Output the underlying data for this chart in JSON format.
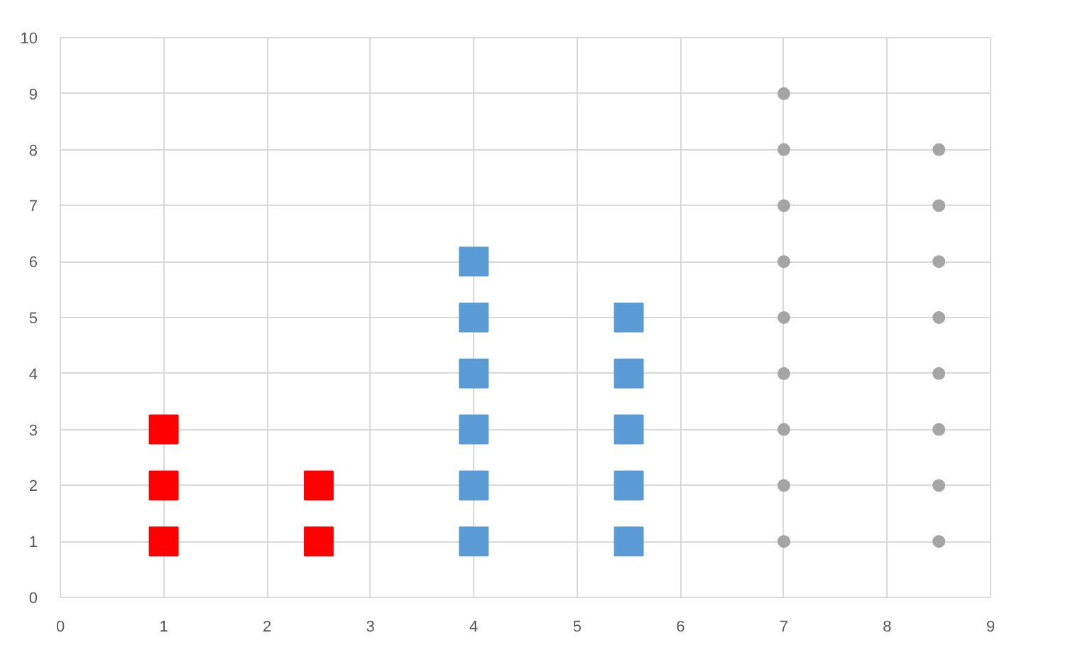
{
  "chart_data": {
    "type": "scatter",
    "xlim": [
      0,
      9
    ],
    "ylim": [
      0,
      10
    ],
    "xticks": [
      0,
      1,
      2,
      3,
      4,
      5,
      6,
      7,
      8,
      9
    ],
    "yticks": [
      0,
      1,
      2,
      3,
      4,
      5,
      6,
      7,
      8,
      9,
      10
    ],
    "grid": true,
    "series": [
      {
        "color": "#ff0000",
        "marker": "square",
        "x": [
          1,
          1,
          1,
          2.5,
          2.5
        ],
        "values": [
          1,
          2,
          3,
          1,
          2
        ]
      },
      {
        "color": "#5b9bd5",
        "marker": "square",
        "x": [
          4,
          4,
          4,
          4,
          4,
          4,
          5.5,
          5.5,
          5.5,
          5.5,
          5.5
        ],
        "values": [
          1,
          2,
          3,
          4,
          5,
          6,
          1,
          2,
          3,
          4,
          5
        ]
      },
      {
        "color": "#a5a5a5",
        "marker": "circle",
        "x": [
          7,
          7,
          7,
          7,
          7,
          7,
          7,
          7,
          7,
          8.5,
          8.5,
          8.5,
          8.5,
          8.5,
          8.5,
          8.5,
          8.5
        ],
        "values": [
          1,
          2,
          3,
          4,
          5,
          6,
          7,
          8,
          9,
          1,
          2,
          3,
          4,
          5,
          6,
          7,
          8
        ]
      }
    ]
  }
}
